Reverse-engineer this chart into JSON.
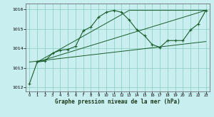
{
  "title": "Graphe pression niveau de la mer (hPa)",
  "background_color": "#c8eef0",
  "grid_color": "#88ccbb",
  "line_color": "#1a5c2a",
  "xlim": [
    -0.5,
    23.5
  ],
  "ylim": [
    1011.8,
    1016.3
  ],
  "xticks": [
    0,
    1,
    2,
    3,
    4,
    5,
    6,
    7,
    8,
    9,
    10,
    11,
    12,
    13,
    14,
    15,
    16,
    17,
    18,
    19,
    20,
    21,
    22,
    23
  ],
  "yticks": [
    1012,
    1013,
    1014,
    1015,
    1016
  ],
  "series1_x": [
    0,
    1,
    2,
    3,
    4,
    5,
    6,
    7,
    8,
    9,
    10,
    11,
    12,
    13,
    14,
    15,
    16,
    17,
    18,
    19,
    20,
    21,
    22,
    23
  ],
  "series1_y": [
    1012.2,
    1013.3,
    1013.35,
    1013.75,
    1013.9,
    1013.95,
    1014.1,
    1014.9,
    1015.1,
    1015.6,
    1015.85,
    1015.95,
    1015.85,
    1015.45,
    1014.95,
    1014.65,
    1014.2,
    1014.05,
    1014.4,
    1014.4,
    1014.4,
    1014.95,
    1015.25,
    1015.95
  ],
  "line2_x": [
    1,
    23
  ],
  "line2_y": [
    1013.3,
    1015.95
  ],
  "line3_x": [
    1,
    13,
    23
  ],
  "line3_y": [
    1013.3,
    1015.95,
    1015.95
  ],
  "line4_x": [
    0,
    23
  ],
  "line4_y": [
    1013.3,
    1014.35
  ]
}
